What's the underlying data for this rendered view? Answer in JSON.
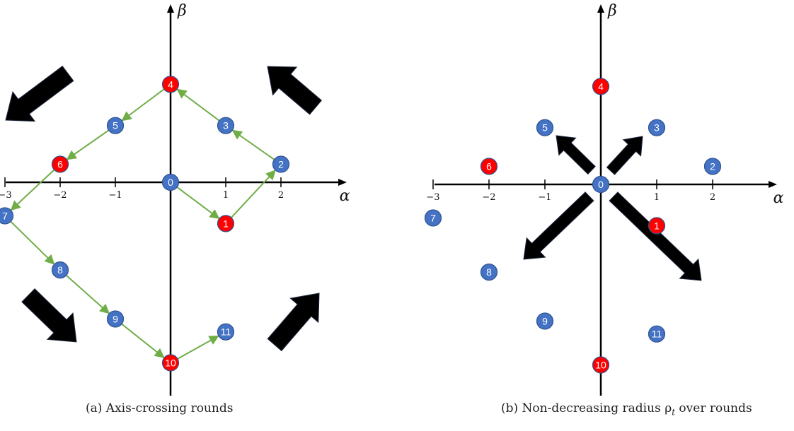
{
  "panels": [
    {
      "id": "a",
      "caption": "(a) Axis-crossing rounds",
      "x_axis_label": "α",
      "y_axis_label": "β",
      "x_ticks": [
        {
          "value": -3,
          "label": "−3"
        },
        {
          "value": -2,
          "label": "−2"
        },
        {
          "value": -1,
          "label": "−1"
        },
        {
          "value": 1,
          "label": "1"
        },
        {
          "value": 2,
          "label": "2"
        }
      ],
      "nodes": [
        {
          "label": "0",
          "x": 0,
          "y": 0,
          "color": "blue"
        },
        {
          "label": "1",
          "x": 1,
          "y": -0.8,
          "color": "red"
        },
        {
          "label": "2",
          "x": 2,
          "y": 0.35,
          "color": "blue"
        },
        {
          "label": "3",
          "x": 1,
          "y": 1.1,
          "color": "blue"
        },
        {
          "label": "4",
          "x": 0,
          "y": 1.9,
          "color": "red"
        },
        {
          "label": "5",
          "x": -1,
          "y": 1.1,
          "color": "blue"
        },
        {
          "label": "6",
          "x": -2,
          "y": 0.35,
          "color": "red"
        },
        {
          "label": "7",
          "x": -3,
          "y": -0.65,
          "color": "blue"
        },
        {
          "label": "8",
          "x": -2,
          "y": -1.7,
          "color": "blue"
        },
        {
          "label": "9",
          "x": -1,
          "y": -2.65,
          "color": "blue"
        },
        {
          "label": "10",
          "x": 0,
          "y": -3.5,
          "color": "red"
        },
        {
          "label": "11",
          "x": 1,
          "y": -2.9,
          "color": "blue"
        }
      ],
      "path": [
        "0",
        "1",
        "2",
        "3",
        "4",
        "5",
        "6",
        "7",
        "8",
        "9",
        "10",
        "11"
      ],
      "big_arrows": [
        {
          "direction": "up-left",
          "quadrant": "top-right"
        },
        {
          "direction": "down-left",
          "quadrant": "top-left"
        },
        {
          "direction": "down-right",
          "quadrant": "bottom-left"
        },
        {
          "direction": "up-right",
          "quadrant": "bottom-right"
        }
      ]
    },
    {
      "id": "b",
      "caption": "(b) Non-decreasing radius ρ",
      "caption_sub": "t",
      "caption_tail": " over rounds",
      "x_axis_label": "α",
      "y_axis_label": "β",
      "x_ticks": [
        {
          "value": -3,
          "label": "−3"
        },
        {
          "value": -2,
          "label": "−2"
        },
        {
          "value": -1,
          "label": "−1"
        },
        {
          "value": 1,
          "label": "1"
        },
        {
          "value": 2,
          "label": "2"
        }
      ],
      "nodes": [
        {
          "label": "0",
          "x": 0,
          "y": 0,
          "color": "blue"
        },
        {
          "label": "1",
          "x": 1,
          "y": -0.8,
          "color": "red"
        },
        {
          "label": "2",
          "x": 2,
          "y": 0.35,
          "color": "blue"
        },
        {
          "label": "3",
          "x": 1,
          "y": 1.1,
          "color": "blue"
        },
        {
          "label": "4",
          "x": 0,
          "y": 1.9,
          "color": "red"
        },
        {
          "label": "5",
          "x": -1,
          "y": 1.1,
          "color": "blue"
        },
        {
          "label": "6",
          "x": -2,
          "y": 0.35,
          "color": "red"
        },
        {
          "label": "7",
          "x": -3,
          "y": -0.65,
          "color": "blue"
        },
        {
          "label": "8",
          "x": -2,
          "y": -1.7,
          "color": "blue"
        },
        {
          "label": "9",
          "x": -1,
          "y": -2.65,
          "color": "blue"
        },
        {
          "label": "10",
          "x": 0,
          "y": -3.5,
          "color": "red"
        },
        {
          "label": "11",
          "x": 1,
          "y": -2.9,
          "color": "blue"
        }
      ],
      "radial_arrows": [
        {
          "direction": "up-left",
          "length": "short"
        },
        {
          "direction": "up-right",
          "length": "short"
        },
        {
          "direction": "down-left",
          "length": "long"
        },
        {
          "direction": "down-right",
          "length": "longest"
        }
      ]
    }
  ],
  "colors": {
    "blue_node": "#4472c4",
    "red_node": "#ff0000",
    "path": "#70ad47",
    "arrow": "#000000",
    "axis": "#000000"
  }
}
